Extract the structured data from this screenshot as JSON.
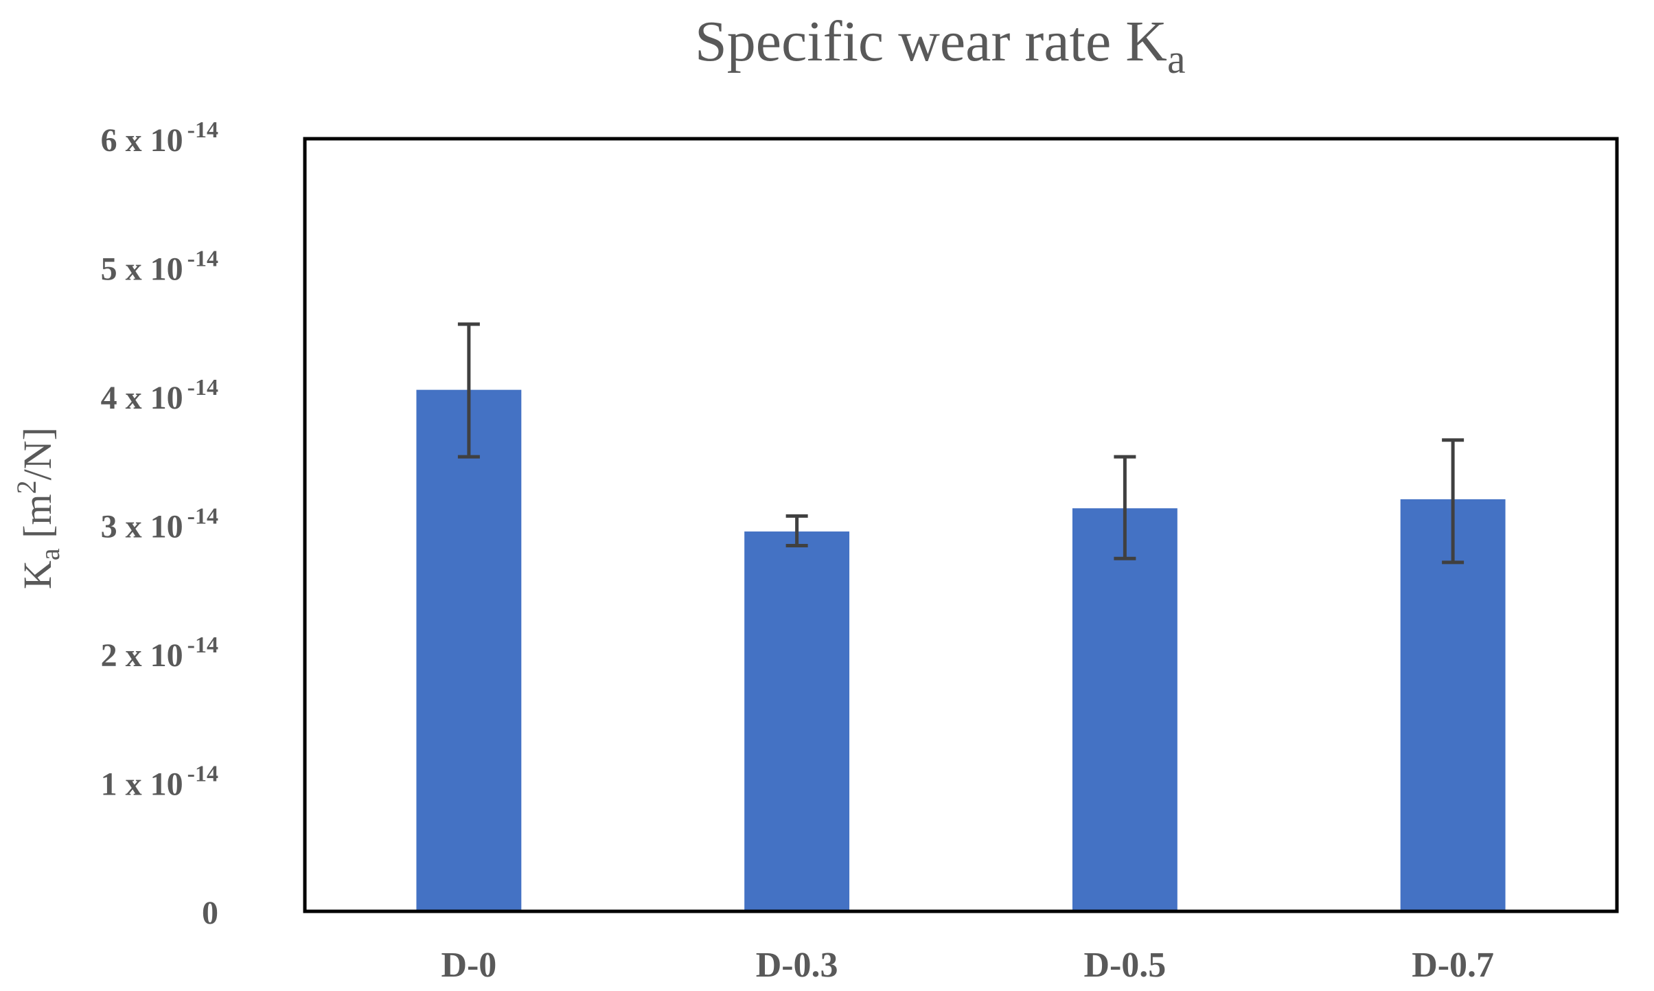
{
  "chart_data": {
    "type": "bar",
    "title": {
      "main": "Specific wear rate K",
      "sub": "a"
    },
    "ylabel": {
      "main": "K",
      "sub": "a",
      "unit_prefix": " [m",
      "unit_sup": "2",
      "unit_suffix": "/N]"
    },
    "xlabel": "",
    "categories": [
      "D-0",
      "D-0.3",
      "D-0.5",
      "D-0.7"
    ],
    "values": [
      4.05,
      2.95,
      3.13,
      3.2
    ],
    "error_low": [
      3.53,
      2.84,
      2.74,
      2.71
    ],
    "error_high": [
      4.56,
      3.07,
      3.53,
      3.66
    ],
    "ylim": [
      0,
      6
    ],
    "yticks": [
      {
        "value": 0,
        "base": "0",
        "exp": ""
      },
      {
        "value": 1,
        "base": "1 x 10",
        "exp": "-14"
      },
      {
        "value": 2,
        "base": "2 x 10",
        "exp": "-14"
      },
      {
        "value": 3,
        "base": "3 x 10",
        "exp": "-14"
      },
      {
        "value": 4,
        "base": "4 x 10",
        "exp": "-14"
      },
      {
        "value": 5,
        "base": "5 x 10",
        "exp": "-14"
      },
      {
        "value": 6,
        "base": "6 x 10",
        "exp": "-14"
      }
    ],
    "grid": false,
    "legend": "none",
    "bar_color": "#4472C4",
    "error_color": "#404040",
    "frame_color": "#000000"
  }
}
